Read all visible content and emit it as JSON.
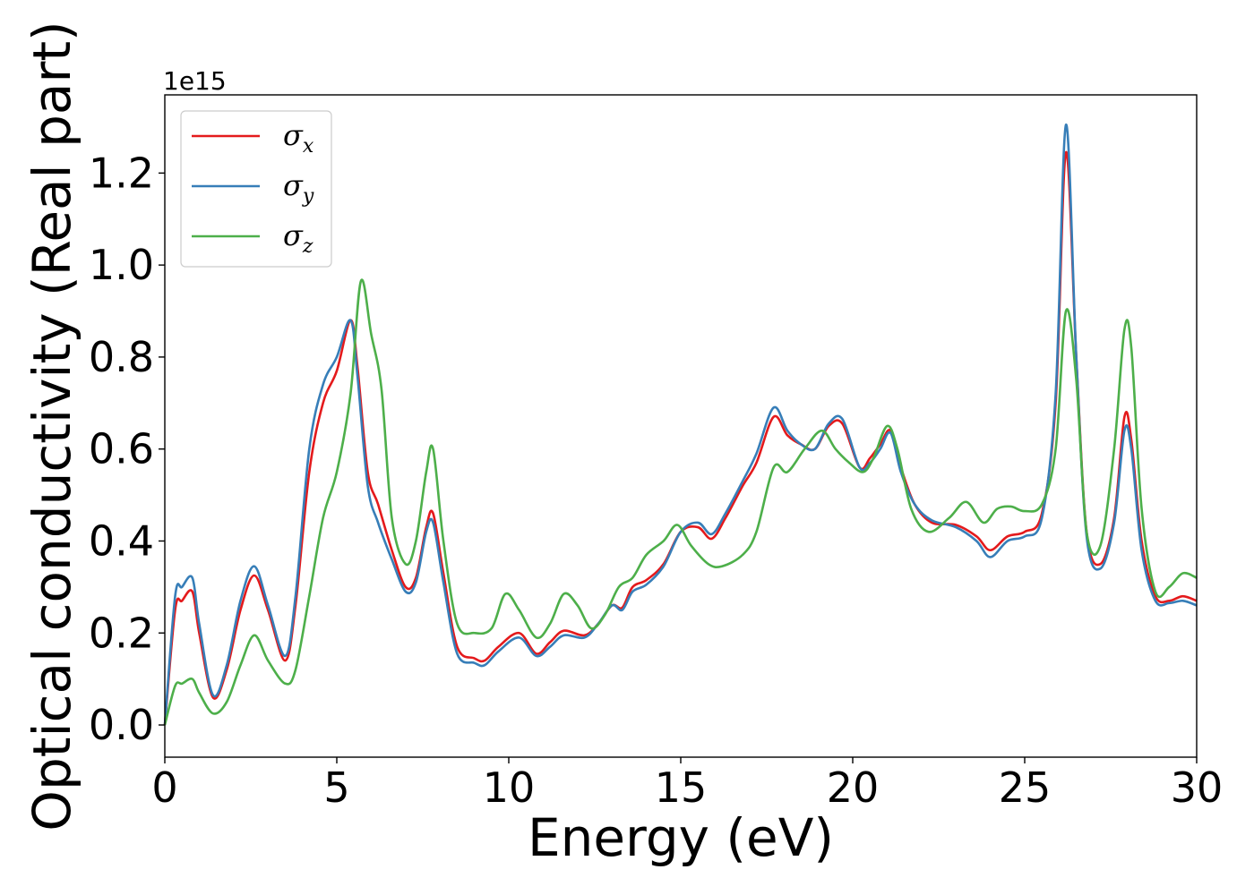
{
  "chart_data": {
    "type": "line",
    "xlabel": "Energy (eV)",
    "ylabel": "Optical conductivity (Real part)",
    "y_offset_text": "1e15",
    "xlim": [
      0,
      30
    ],
    "ylim": [
      -0.07,
      1.37
    ],
    "x_ticks": [
      0,
      5,
      10,
      15,
      20,
      25,
      30
    ],
    "x_tick_labels": [
      "0",
      "5",
      "10",
      "15",
      "20",
      "25",
      "30"
    ],
    "y_ticks": [
      0.0,
      0.2,
      0.4,
      0.6,
      0.8,
      1.0,
      1.2
    ],
    "y_tick_labels": [
      "0.0",
      "0.2",
      "0.4",
      "0.6",
      "0.8",
      "1.0",
      "1.2"
    ],
    "grid": false,
    "legend_position": "top-left",
    "series": [
      {
        "name": "σx",
        "legend_symbol": "σ",
        "legend_subscript": "x",
        "color": "#e41a1c",
        "x": [
          0,
          0.3,
          0.5,
          0.8,
          1.0,
          1.4,
          1.8,
          2.2,
          2.6,
          3.0,
          3.5,
          3.8,
          4.2,
          4.6,
          5.0,
          5.4,
          5.6,
          5.9,
          6.2,
          6.6,
          7.0,
          7.3,
          7.6,
          7.8,
          8.1,
          8.5,
          9.0,
          9.3,
          9.7,
          10.3,
          10.8,
          11.2,
          11.6,
          12.2,
          12.6,
          13.0,
          13.3,
          13.6,
          14.0,
          14.5,
          15.0,
          15.5,
          15.9,
          16.3,
          16.8,
          17.2,
          17.7,
          18.1,
          18.5,
          18.9,
          19.3,
          19.7,
          20.2,
          20.5,
          20.8,
          21.1,
          21.4,
          21.8,
          22.3,
          23.0,
          23.6,
          24.0,
          24.5,
          25.0,
          25.5,
          25.9,
          26.2,
          26.5,
          26.8,
          27.2,
          27.6,
          27.9,
          28.1,
          28.4,
          28.8,
          29.2,
          29.6,
          30.0
        ],
        "y": [
          0.0,
          0.25,
          0.27,
          0.29,
          0.2,
          0.06,
          0.12,
          0.25,
          0.325,
          0.25,
          0.14,
          0.26,
          0.55,
          0.7,
          0.77,
          0.88,
          0.78,
          0.55,
          0.48,
          0.38,
          0.3,
          0.32,
          0.43,
          0.46,
          0.33,
          0.17,
          0.145,
          0.14,
          0.17,
          0.2,
          0.155,
          0.18,
          0.205,
          0.195,
          0.22,
          0.26,
          0.255,
          0.3,
          0.315,
          0.35,
          0.42,
          0.43,
          0.405,
          0.45,
          0.52,
          0.57,
          0.67,
          0.63,
          0.61,
          0.6,
          0.65,
          0.655,
          0.56,
          0.58,
          0.61,
          0.64,
          0.56,
          0.48,
          0.44,
          0.435,
          0.41,
          0.38,
          0.41,
          0.42,
          0.46,
          0.7,
          1.245,
          0.8,
          0.42,
          0.35,
          0.45,
          0.67,
          0.62,
          0.4,
          0.28,
          0.27,
          0.28,
          0.27
        ]
      },
      {
        "name": "σy",
        "legend_symbol": "σ",
        "legend_subscript": "y",
        "color": "#377eb8",
        "x": [
          0,
          0.3,
          0.5,
          0.8,
          1.0,
          1.4,
          1.8,
          2.2,
          2.6,
          3.0,
          3.5,
          3.8,
          4.2,
          4.6,
          5.0,
          5.4,
          5.6,
          5.9,
          6.2,
          6.6,
          7.0,
          7.3,
          7.6,
          7.8,
          8.1,
          8.5,
          9.0,
          9.3,
          9.7,
          10.3,
          10.8,
          11.2,
          11.6,
          12.2,
          12.6,
          13.0,
          13.3,
          13.6,
          14.0,
          14.5,
          15.0,
          15.5,
          15.9,
          16.3,
          16.8,
          17.2,
          17.7,
          18.1,
          18.5,
          18.9,
          19.3,
          19.7,
          20.2,
          20.5,
          20.8,
          21.1,
          21.4,
          21.8,
          22.3,
          23.0,
          23.6,
          24.0,
          24.5,
          25.0,
          25.5,
          25.9,
          26.2,
          26.5,
          26.8,
          27.2,
          27.6,
          27.9,
          28.1,
          28.4,
          28.8,
          29.2,
          29.6,
          30.0
        ],
        "y": [
          0.0,
          0.28,
          0.3,
          0.32,
          0.22,
          0.065,
          0.13,
          0.27,
          0.345,
          0.26,
          0.15,
          0.28,
          0.6,
          0.74,
          0.8,
          0.88,
          0.76,
          0.52,
          0.44,
          0.36,
          0.29,
          0.31,
          0.42,
          0.44,
          0.31,
          0.155,
          0.135,
          0.13,
          0.16,
          0.19,
          0.15,
          0.17,
          0.195,
          0.19,
          0.22,
          0.26,
          0.25,
          0.29,
          0.305,
          0.345,
          0.42,
          0.44,
          0.415,
          0.46,
          0.53,
          0.59,
          0.69,
          0.64,
          0.61,
          0.6,
          0.655,
          0.665,
          0.56,
          0.57,
          0.6,
          0.635,
          0.55,
          0.48,
          0.445,
          0.43,
          0.4,
          0.365,
          0.4,
          0.41,
          0.45,
          0.72,
          1.305,
          0.8,
          0.41,
          0.34,
          0.44,
          0.64,
          0.6,
          0.38,
          0.27,
          0.265,
          0.27,
          0.26
        ]
      },
      {
        "name": "σz",
        "legend_symbol": "σ",
        "legend_subscript": "z",
        "color": "#4daf4a",
        "x": [
          0,
          0.3,
          0.5,
          0.8,
          1.0,
          1.4,
          1.8,
          2.2,
          2.6,
          3.0,
          3.5,
          3.8,
          4.2,
          4.6,
          5.0,
          5.4,
          5.7,
          6.0,
          6.3,
          6.6,
          7.0,
          7.3,
          7.6,
          7.8,
          8.1,
          8.5,
          9.0,
          9.5,
          9.9,
          10.3,
          10.8,
          11.2,
          11.6,
          12.0,
          12.4,
          12.8,
          13.2,
          13.6,
          14.0,
          14.5,
          14.9,
          15.3,
          15.8,
          16.2,
          16.8,
          17.2,
          17.7,
          18.1,
          18.6,
          19.1,
          19.5,
          19.9,
          20.3,
          20.6,
          21.0,
          21.3,
          21.7,
          22.2,
          22.8,
          23.3,
          23.8,
          24.2,
          24.6,
          25.0,
          25.5,
          25.9,
          26.2,
          26.5,
          26.8,
          27.2,
          27.6,
          27.9,
          28.1,
          28.4,
          28.8,
          29.2,
          29.6,
          30.0
        ],
        "y": [
          0.0,
          0.085,
          0.09,
          0.1,
          0.07,
          0.025,
          0.05,
          0.13,
          0.195,
          0.14,
          0.09,
          0.12,
          0.28,
          0.45,
          0.55,
          0.72,
          0.965,
          0.85,
          0.73,
          0.45,
          0.35,
          0.4,
          0.55,
          0.6,
          0.4,
          0.22,
          0.2,
          0.21,
          0.285,
          0.25,
          0.19,
          0.22,
          0.285,
          0.26,
          0.21,
          0.24,
          0.3,
          0.32,
          0.37,
          0.4,
          0.435,
          0.39,
          0.35,
          0.345,
          0.37,
          0.42,
          0.56,
          0.55,
          0.6,
          0.64,
          0.6,
          0.57,
          0.55,
          0.58,
          0.65,
          0.6,
          0.47,
          0.42,
          0.45,
          0.485,
          0.44,
          0.47,
          0.475,
          0.465,
          0.48,
          0.6,
          0.9,
          0.75,
          0.42,
          0.39,
          0.6,
          0.86,
          0.82,
          0.47,
          0.29,
          0.3,
          0.33,
          0.32
        ]
      }
    ]
  }
}
